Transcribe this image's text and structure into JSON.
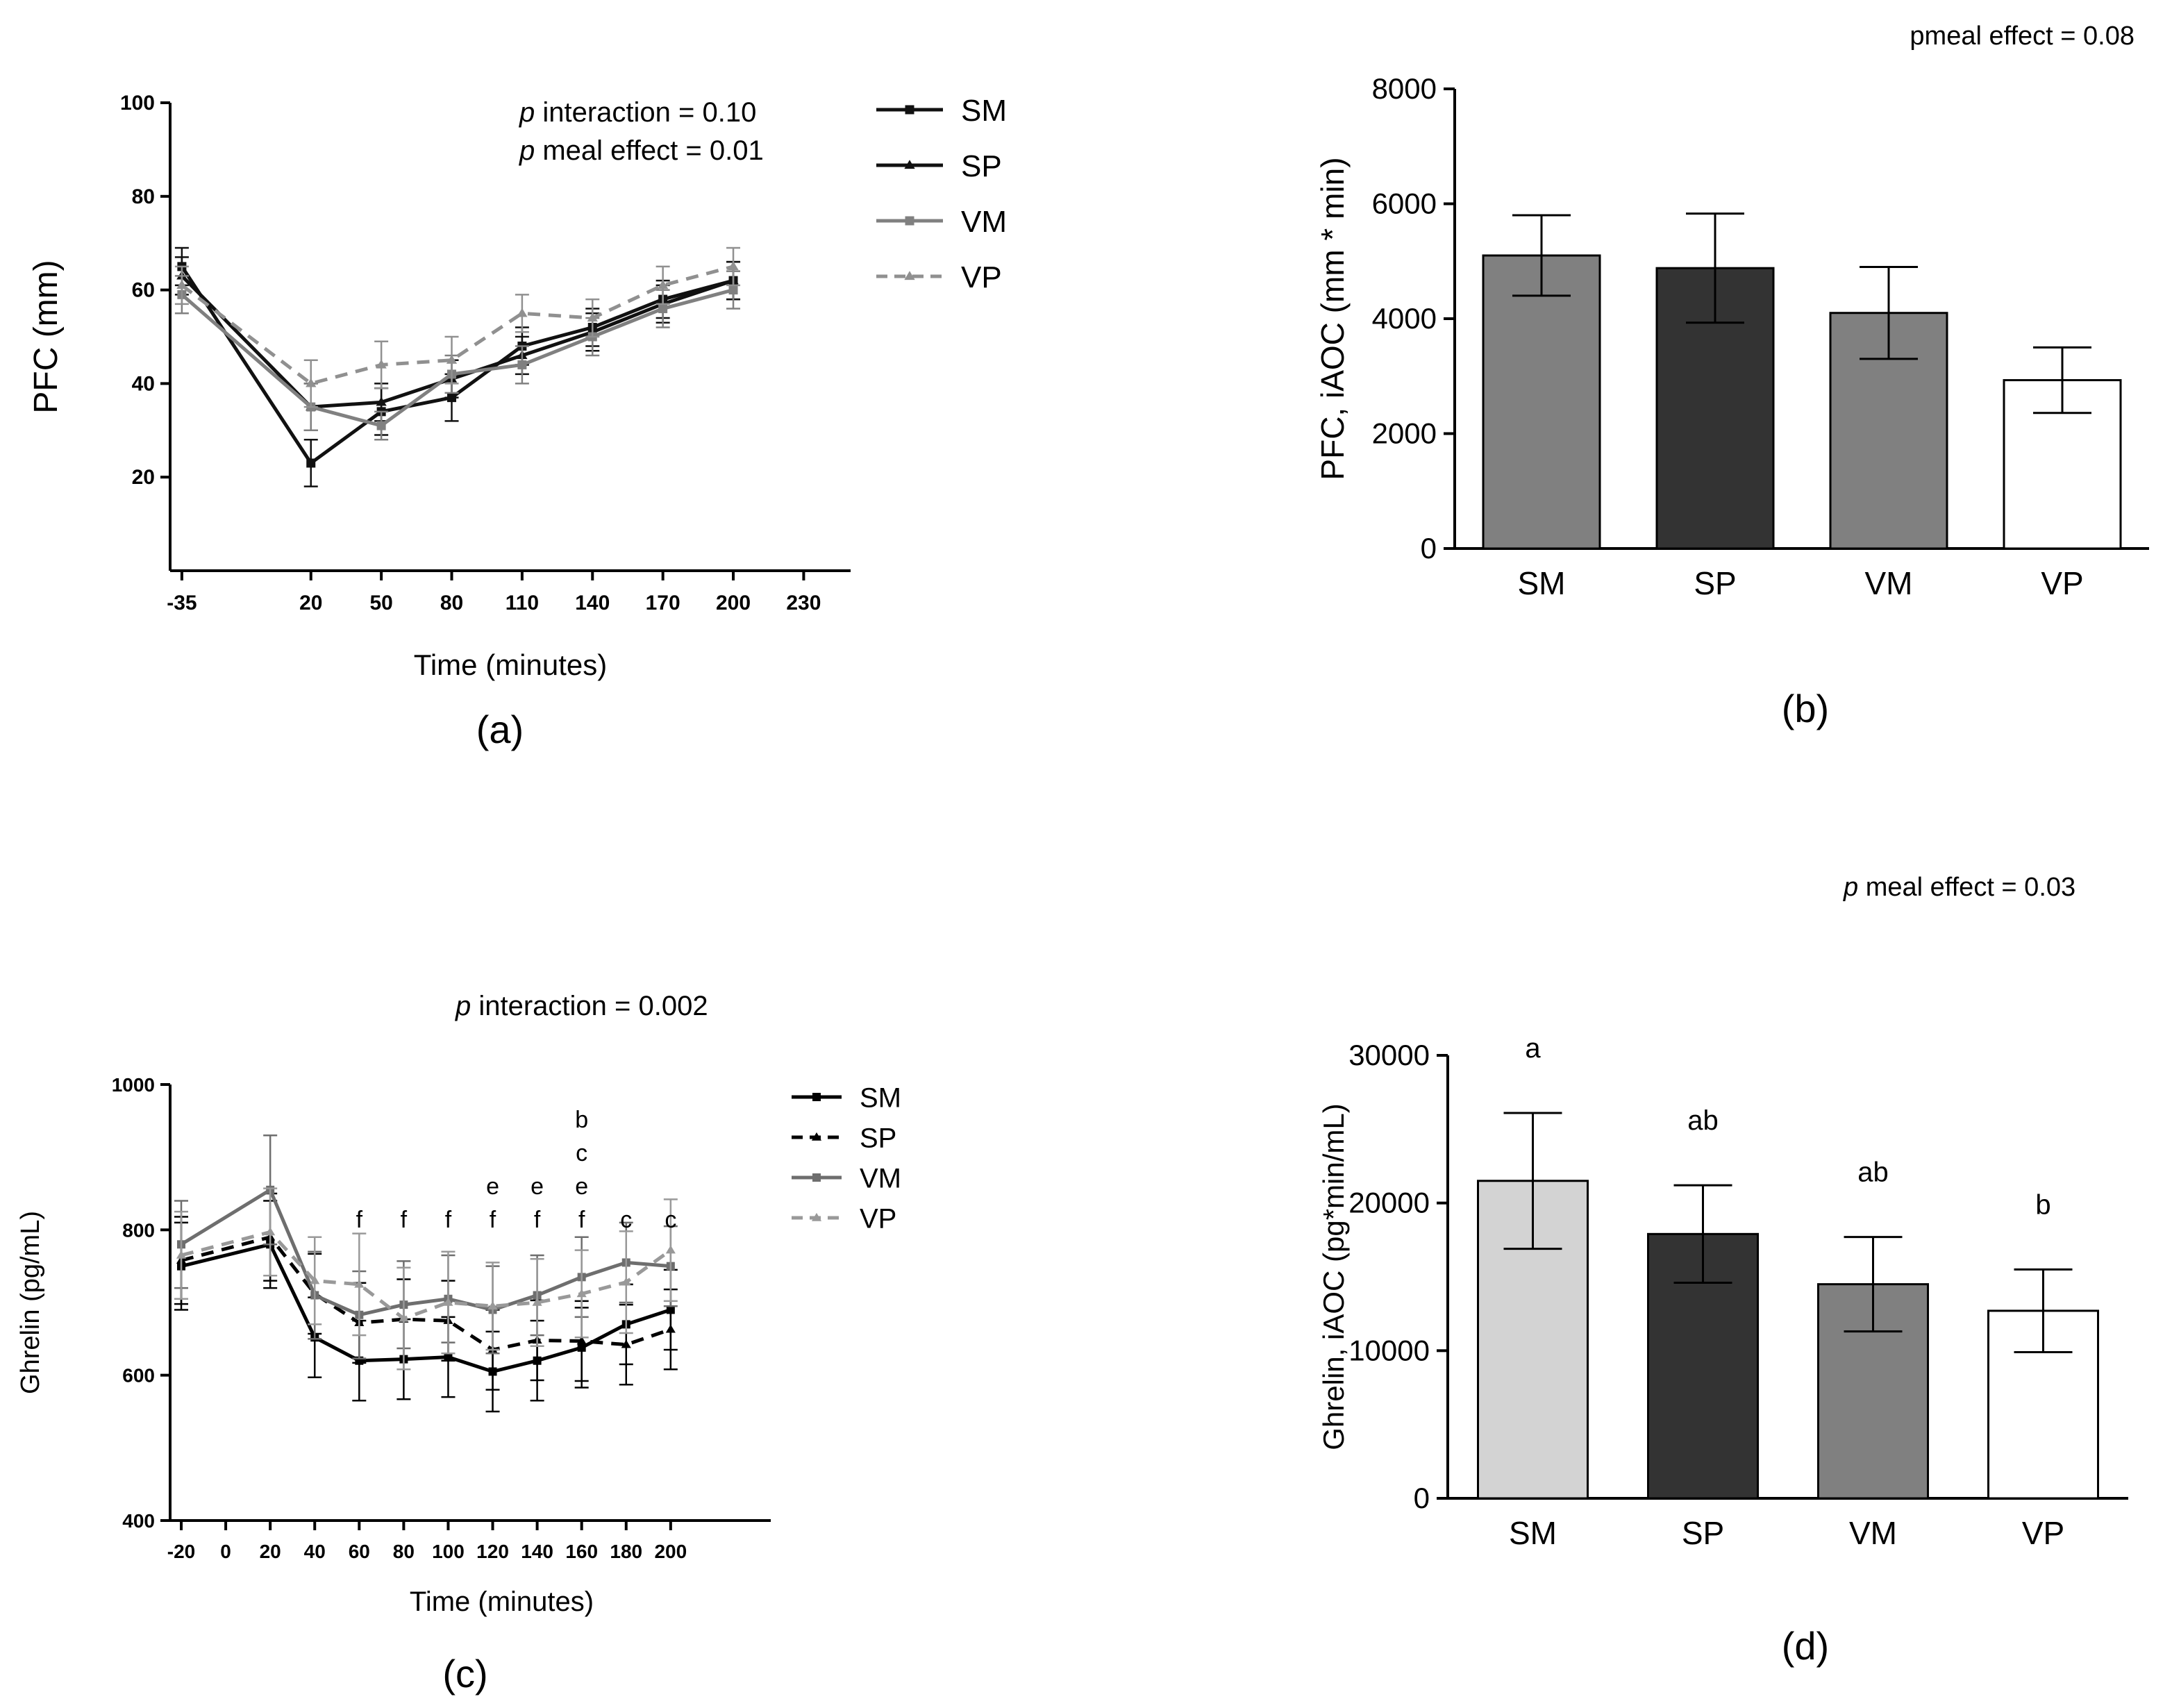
{
  "chart_data": [
    {
      "id": "a",
      "type": "line",
      "panel_label": "(a)",
      "xlabel": "Time (minutes)",
      "ylabel": "PFC (mm)",
      "x_ticks": [
        -35,
        20,
        50,
        80,
        110,
        140,
        170,
        200,
        230
      ],
      "y_ticks": [
        20,
        40,
        60,
        80,
        100
      ],
      "xlim": [
        -40,
        250
      ],
      "ylim": [
        0,
        100
      ],
      "annotations": [
        {
          "italic": "p",
          "text": " interaction  = 0.10"
        },
        {
          "italic": "p",
          "text": " meal effect = 0.01"
        }
      ],
      "x": [
        -35,
        20,
        50,
        80,
        110,
        140,
        170,
        200
      ],
      "series": [
        {
          "name": "SM",
          "color": "#111111",
          "dash": "solid",
          "marker": "square",
          "values": [
            65,
            23,
            34,
            37,
            48,
            52,
            58,
            62
          ],
          "errors": [
            4,
            5,
            5,
            5,
            4,
            4,
            4,
            4
          ]
        },
        {
          "name": "SP",
          "color": "#111111",
          "dash": "solid",
          "marker": "triangle",
          "values": [
            63,
            35,
            36,
            41,
            46,
            51,
            57,
            62
          ],
          "errors": [
            4,
            5,
            4,
            4,
            4,
            4,
            4,
            4
          ]
        },
        {
          "name": "VM",
          "color": "#808080",
          "dash": "solid",
          "marker": "square",
          "values": [
            59,
            35,
            31,
            42,
            44,
            50,
            56,
            60
          ],
          "errors": [
            4,
            5,
            3,
            4,
            4,
            4,
            4,
            4
          ]
        },
        {
          "name": "VP",
          "color": "#909090",
          "dash": "dashed",
          "marker": "triangle",
          "values": [
            61,
            40,
            44,
            45,
            55,
            54,
            61,
            65
          ],
          "errors": [
            4,
            5,
            5,
            5,
            4,
            4,
            4,
            4
          ]
        }
      ]
    },
    {
      "id": "b",
      "type": "bar",
      "panel_label": "(b)",
      "ylabel": "PFC, iAOC (mm * min)",
      "annotation": "pmeal effect = 0.08",
      "categories": [
        "SM",
        "SP",
        "VM",
        "VP"
      ],
      "values": [
        5100,
        4880,
        4100,
        2930
      ],
      "errors": [
        700,
        950,
        800,
        570
      ],
      "colors": [
        "#808080",
        "#333333",
        "#808080",
        "#ffffff"
      ],
      "y_ticks": [
        0,
        2000,
        4000,
        6000,
        8000
      ],
      "ylim": [
        0,
        8000
      ]
    },
    {
      "id": "c",
      "type": "line",
      "panel_label": "(c)",
      "xlabel": "Time (minutes)",
      "ylabel": "Ghrelin (pg/mL)",
      "annotation": {
        "italic": "p",
        "text": " interaction = 0.002"
      },
      "x_ticks": [
        -20,
        0,
        20,
        40,
        60,
        80,
        100,
        120,
        140,
        160,
        180,
        200
      ],
      "y_ticks": [
        400,
        600,
        800,
        1000
      ],
      "xlim": [
        -25,
        245
      ],
      "ylim": [
        400,
        1000
      ],
      "x": [
        -20,
        20,
        40,
        60,
        80,
        100,
        120,
        140,
        160,
        180,
        200
      ],
      "series": [
        {
          "name": "SM",
          "color": "#000000",
          "dash": "solid",
          "marker": "square",
          "values": [
            750,
            780,
            652,
            620,
            622,
            625,
            605,
            620,
            638,
            670,
            690
          ],
          "errors": [
            60,
            60,
            55,
            55,
            55,
            55,
            55,
            55,
            55,
            55,
            55
          ]
        },
        {
          "name": "SP",
          "color": "#000000",
          "dash": "dashed",
          "marker": "triangle",
          "values": [
            758,
            790,
            712,
            672,
            677,
            675,
            635,
            648,
            647,
            642,
            663
          ],
          "errors": [
            60,
            60,
            55,
            55,
            55,
            55,
            55,
            55,
            55,
            55,
            55
          ]
        },
        {
          "name": "VM",
          "color": "#6e6e6e",
          "dash": "solid",
          "marker": "square",
          "values": [
            780,
            855,
            710,
            683,
            697,
            705,
            690,
            710,
            735,
            755,
            750
          ],
          "errors": [
            60,
            75,
            60,
            60,
            60,
            60,
            60,
            55,
            55,
            55,
            55
          ]
        },
        {
          "name": "VP",
          "color": "#999999",
          "dash": "dashed",
          "marker": "triangle",
          "values": [
            765,
            797,
            730,
            725,
            678,
            700,
            695,
            700,
            712,
            728,
            772
          ],
          "errors": [
            60,
            60,
            60,
            70,
            70,
            70,
            60,
            60,
            60,
            70,
            70
          ]
        }
      ],
      "letter_labels": [
        {
          "x": 60,
          "lines": [
            "f"
          ]
        },
        {
          "x": 80,
          "lines": [
            "f"
          ]
        },
        {
          "x": 100,
          "lines": [
            "f"
          ]
        },
        {
          "x": 120,
          "lines": [
            "e",
            "f"
          ]
        },
        {
          "x": 140,
          "lines": [
            "e",
            "f"
          ]
        },
        {
          "x": 160,
          "lines": [
            "b",
            "c",
            "e",
            "f"
          ]
        },
        {
          "x": 180,
          "lines": [
            "c"
          ]
        },
        {
          "x": 200,
          "lines": [
            "c"
          ]
        }
      ]
    },
    {
      "id": "d",
      "type": "bar",
      "panel_label": "(d)",
      "ylabel": "Ghrelin, iAOC (pg*min/mL)",
      "annotation": {
        "italic": "p",
        "text": " meal effect = 0.03"
      },
      "categories": [
        "SM",
        "SP",
        "VM",
        "VP"
      ],
      "values": [
        21500,
        17900,
        14500,
        12700
      ],
      "errors": [
        4600,
        3300,
        3200,
        2800
      ],
      "colors": [
        "#d3d3d3",
        "#333333",
        "#808080",
        "#ffffff"
      ],
      "bar_labels": [
        "a",
        "ab",
        "ab",
        "b"
      ],
      "y_ticks": [
        0,
        10000,
        20000,
        30000
      ],
      "ylim": [
        0,
        30000
      ]
    }
  ]
}
